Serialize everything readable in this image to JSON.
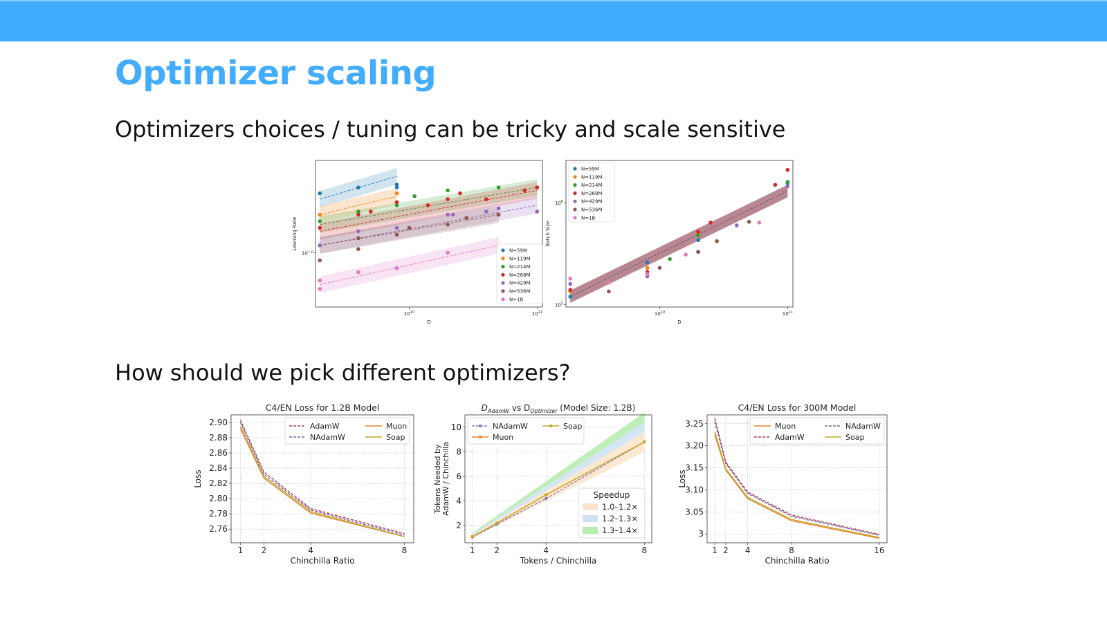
{
  "slide": {
    "title": "Optimizer scaling",
    "subtitle1": "Optimizers choices / tuning can be tricky and scale sensitive",
    "subtitle2": "How should we pick different optimizers?",
    "header_color": "#42adff"
  },
  "chart_data": [
    {
      "id": "lr",
      "type": "scatter",
      "title": "",
      "xlabel": "D",
      "ylabel": "Learning Rate",
      "xscale": "log",
      "yscale": "log",
      "xlim": [
        1850000000.0,
        110000000000.0
      ],
      "ylim": [
        0.0052,
        0.0095
      ],
      "xticks": [
        {
          "v": 10000000000.0,
          "base": "10",
          "exp": "10"
        },
        {
          "v": 100000000000.0,
          "base": "10",
          "exp": "11"
        }
      ],
      "yticks": [
        {
          "v": 0.0065,
          "base": "10",
          "exp": "−2"
        }
      ],
      "legend": "lower-right",
      "legend_labels": [
        "N=59M",
        "N=119M",
        "N=214M",
        "N=268M",
        "N=429M",
        "N=536M",
        "N=1B"
      ],
      "series": [
        {
          "name": "N=59M",
          "color": "#1f77b4",
          "fit": [
            2000000000.0,
            8000000000.0,
            0.0081,
            0.0089
          ],
          "points": [
            [
              2000000000.0,
              0.0083
            ],
            [
              4000000000.0,
              0.0085
            ],
            [
              8000000000.0,
              0.0086
            ],
            [
              8000000000.0,
              0.0085
            ]
          ]
        },
        {
          "name": "N=119M",
          "color": "#ff7f0e",
          "fit": [
            2000000000.0,
            8000000000.0,
            0.0076,
            0.0082
          ],
          "points": [
            [
              2000000000.0,
              0.0076
            ],
            [
              4000000000.0,
              0.0077
            ],
            [
              8000000000.0,
              0.0083
            ]
          ]
        },
        {
          "name": "N=214M",
          "color": "#2ca02c",
          "fit": [
            2000000000.0,
            100000000000.0,
            0.0073,
            0.0085
          ],
          "points": [
            [
              2000000000.0,
              0.0074
            ],
            [
              4000000000.0,
              0.0077
            ],
            [
              8000000000.0,
              0.0079
            ],
            [
              11000000000.0,
              0.0082
            ],
            [
              20000000000.0,
              0.0084
            ],
            [
              50000000000.0,
              0.0085
            ],
            [
              100000000000.0,
              0.0085
            ]
          ]
        },
        {
          "name": "N=268M",
          "color": "#d62728",
          "fit": [
            2000000000.0,
            100000000000.0,
            0.0071,
            0.0084
          ],
          "points": [
            [
              2000000000.0,
              0.0072
            ],
            [
              4000000000.0,
              0.0076
            ],
            [
              5000000000.0,
              0.0077
            ],
            [
              14000000000.0,
              0.0079
            ],
            [
              20000000000.0,
              0.0081
            ],
            [
              25000000000.0,
              0.0083
            ],
            [
              40000000000.0,
              0.0081
            ],
            [
              80000000000.0,
              0.0084
            ],
            [
              100000000000.0,
              0.0085
            ],
            [
              8000000000.0,
              0.008
            ]
          ]
        },
        {
          "name": "N=429M",
          "color": "#9467bd",
          "fit": [
            2000000000.0,
            100000000000.0,
            0.0067,
            0.0079
          ],
          "points": [
            [
              2000000000.0,
              0.0067
            ],
            [
              4000000000.0,
              0.0071
            ],
            [
              8000000000.0,
              0.0072
            ],
            [
              20000000000.0,
              0.0076
            ],
            [
              22000000000.0,
              0.0076
            ],
            [
              40000000000.0,
              0.0077
            ],
            [
              50000000000.0,
              0.0078
            ],
            [
              100000000000.0,
              0.0077
            ]
          ]
        },
        {
          "name": "N=536M",
          "color": "#8c564b",
          "fit": [
            2000000000.0,
            50000000000.0,
            0.0067,
            0.0076
          ],
          "points": [
            [
              2000000000.0,
              0.0063
            ],
            [
              4000000000.0,
              0.0066
            ],
            [
              4000000000.0,
              0.0069
            ],
            [
              8000000000.0,
              0.007
            ],
            [
              10000000000.0,
              0.0072
            ],
            [
              20000000000.0,
              0.0073
            ],
            [
              28000000000.0,
              0.0075
            ],
            [
              50000000000.0,
              0.0076
            ]
          ]
        },
        {
          "name": "N=1B",
          "color": "#e377c2",
          "fit": [
            2000000000.0,
            50000000000.0,
            0.0057,
            0.0067
          ],
          "points": [
            [
              2000000000.0,
              0.0058
            ],
            [
              2000000000.0,
              0.0056
            ],
            [
              4000000000.0,
              0.006
            ],
            [
              8000000000.0,
              0.0061
            ],
            [
              20000000000.0,
              0.0065
            ]
          ]
        }
      ]
    },
    {
      "id": "bs",
      "type": "scatter",
      "title": "",
      "xlabel": "D",
      "ylabel": "Batch Size",
      "xscale": "log",
      "yscale": "log",
      "xlim": [
        1850000000.0,
        110000000000.0
      ],
      "ylim": [
        95000,
        2600000
      ],
      "xticks": [
        {
          "v": 10000000000.0,
          "base": "10",
          "exp": "10"
        },
        {
          "v": 100000000000.0,
          "base": "10",
          "exp": "11"
        }
      ],
      "yticks": [
        {
          "v": 100000.0,
          "base": "10",
          "exp": "5"
        },
        {
          "v": 1000000.0,
          "base": "10",
          "exp": "6"
        }
      ],
      "legend": "upper-left",
      "legend_labels": [
        "N=59M",
        "N=119M",
        "N=214M",
        "N=268M",
        "N=429M",
        "N=536M",
        "N=1B"
      ],
      "fit": [
        2000000000.0,
        100000000000.0,
        120000,
        1300000
      ],
      "fit_color": "#b07a86",
      "series": [
        {
          "name": "N=59M",
          "color": "#1f77b4",
          "points": [
            [
              2000000000.0,
              120000
            ],
            [
              8000000000.0,
              260000
            ],
            [
              100000000000.0,
              1550000
            ],
            [
              20000000000.0,
              430000
            ]
          ]
        },
        {
          "name": "N=119M",
          "color": "#ff7f0e",
          "points": [
            [
              2000000000.0,
              135000
            ],
            [
              8000000000.0,
              230000
            ],
            [
              20000000000.0,
              500000
            ]
          ]
        },
        {
          "name": "N=214M",
          "color": "#2ca02c",
          "points": [
            [
              12000000000.0,
              280000
            ],
            [
              20000000000.0,
              480000
            ],
            [
              100000000000.0,
              1600000
            ]
          ]
        },
        {
          "name": "N=268M",
          "color": "#d62728",
          "points": [
            [
              2000000000.0,
              140000
            ],
            [
              8000000000.0,
              210000
            ],
            [
              20000000000.0,
              520000
            ],
            [
              25000000000.0,
              640000
            ],
            [
              80000000000.0,
              1500000
            ],
            [
              100000000000.0,
              2100000
            ]
          ]
        },
        {
          "name": "N=429M",
          "color": "#9467bd",
          "points": [
            [
              2000000000.0,
              160000
            ],
            [
              8000000000.0,
              190000
            ],
            [
              20000000000.0,
              330000
            ],
            [
              40000000000.0,
              600000
            ],
            [
              100000000000.0,
              1450000
            ]
          ]
        },
        {
          "name": "N=536M",
          "color": "#8c564b",
          "points": [
            [
              4000000000.0,
              135000
            ],
            [
              10000000000.0,
              230000
            ],
            [
              20000000000.0,
              330000
            ],
            [
              28000000000.0,
              420000
            ],
            [
              50000000000.0,
              650000
            ]
          ]
        },
        {
          "name": "N=1B",
          "color": "#e377c2",
          "points": [
            [
              2000000000.0,
              180000
            ],
            [
              4000000000.0,
              165000
            ],
            [
              8000000000.0,
              200000
            ],
            [
              16000000000.0,
              310000
            ],
            [
              60000000000.0,
              640000
            ]
          ]
        }
      ]
    },
    {
      "id": "loss12",
      "type": "line",
      "title": "C4/EN Loss for 1.2B Model",
      "xlabel": "Chinchilla Ratio",
      "ylabel": "Loss",
      "xlim": [
        0.6,
        8.4
      ],
      "ylim": [
        2.742,
        2.91
      ],
      "xticks": [
        1,
        2,
        4,
        8
      ],
      "yticks": [
        2.76,
        2.78,
        2.8,
        2.82,
        2.84,
        2.86,
        2.88,
        2.9
      ],
      "grid": true,
      "legend": "upper-right",
      "series": [
        {
          "name": "AdamW",
          "color": "#b03a48",
          "dash": true,
          "x": [
            1,
            2,
            4,
            8
          ],
          "values": [
            2.903,
            2.835,
            2.787,
            2.754
          ]
        },
        {
          "name": "Muon",
          "color": "#e8812a",
          "dash": false,
          "x": [
            1,
            2,
            4,
            8
          ],
          "values": [
            2.892,
            2.827,
            2.781,
            2.75
          ]
        },
        {
          "name": "NAdamW",
          "color": "#7063a8",
          "dash": true,
          "x": [
            1,
            2,
            4,
            8
          ],
          "values": [
            2.9,
            2.832,
            2.785,
            2.752
          ]
        },
        {
          "name": "Soap",
          "color": "#c4a82a",
          "dash": false,
          "x": [
            1,
            2,
            4,
            8
          ],
          "values": [
            2.895,
            2.829,
            2.783,
            2.75
          ]
        }
      ]
    },
    {
      "id": "dadam",
      "type": "line",
      "title_main": "D",
      "title_sub1": "AdamW",
      "title_mid": " vs D",
      "title_sub2": "Optimizer",
      "title_end": " (Model Size: 1.2B)",
      "xlabel": "Tokens / Chinchilla",
      "ylabel": "Tokens Needed by AdamW / Chinchilla",
      "ylabel_line1": "Tokens Needed by",
      "ylabel_line2": "AdamW / Chinchilla",
      "xlim": [
        0.7,
        8.3
      ],
      "ylim": [
        0.6,
        11.0
      ],
      "xticks": [
        1,
        2,
        4,
        8
      ],
      "yticks": [
        2,
        4,
        6,
        8,
        10
      ],
      "grid": true,
      "legend": "upper-left",
      "bands_legend_title": "Speedup",
      "bands": [
        {
          "label": "1.0–1.2×",
          "color": "#fde5cc",
          "lo": 1.0,
          "hi": 1.2
        },
        {
          "label": "1.2–1.3×",
          "color": "#cfe2f3",
          "lo": 1.2,
          "hi": 1.3
        },
        {
          "label": "1.3–1.4×",
          "color": "#b8ecb0",
          "lo": 1.3,
          "hi": 1.4
        }
      ],
      "series": [
        {
          "name": "NAdamW",
          "color": "#8a7ec0",
          "dash": true,
          "x": [
            1,
            2,
            4,
            8
          ],
          "values": [
            1.05,
            2.1,
            4.2,
            8.8
          ]
        },
        {
          "name": "Muon",
          "color": "#e8812a",
          "dash": false,
          "x": [
            1,
            2,
            4,
            8
          ],
          "values": [
            1.1,
            2.2,
            4.5,
            8.8
          ]
        },
        {
          "name": "Soap",
          "color": "#c4a82a",
          "dash": false,
          "x": [
            1,
            2,
            4,
            8
          ],
          "values": [
            1.1,
            2.2,
            4.5,
            8.8
          ]
        }
      ]
    },
    {
      "id": "loss300",
      "type": "line",
      "title": "C4/EN Loss for 300M Model",
      "xlabel": "Chinchilla Ratio",
      "ylabel": "Loss",
      "xlim": [
        0.3,
        16.7
      ],
      "ylim": [
        2.98,
        3.27
      ],
      "xticks": [
        1,
        2,
        4,
        8,
        16
      ],
      "yticks": [
        3.0,
        3.05,
        3.1,
        3.15,
        3.2,
        3.25
      ],
      "grid": true,
      "legend": "upper-right",
      "series": [
        {
          "name": "Muon",
          "color": "#e8812a",
          "dash": false,
          "x": [
            1,
            2,
            4,
            8,
            16
          ],
          "values": [
            3.225,
            3.145,
            3.08,
            3.03,
            2.99
          ]
        },
        {
          "name": "NAdamW",
          "color": "#7063a8",
          "dash": true,
          "x": [
            1,
            2,
            4,
            8,
            16
          ],
          "values": [
            3.255,
            3.16,
            3.092,
            3.04,
            2.997
          ]
        },
        {
          "name": "AdamW",
          "color": "#b03a48",
          "dash": true,
          "x": [
            1,
            2,
            4,
            8,
            16
          ],
          "values": [
            3.262,
            3.163,
            3.095,
            3.043,
            2.999
          ]
        },
        {
          "name": "Soap",
          "color": "#c4a82a",
          "dash": false,
          "x": [
            1,
            2,
            4,
            8,
            16
          ],
          "values": [
            3.232,
            3.148,
            3.083,
            3.033,
            2.992
          ]
        }
      ]
    }
  ]
}
